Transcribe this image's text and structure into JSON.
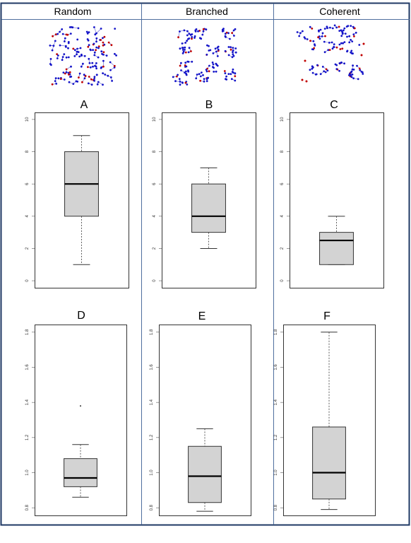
{
  "columns": [
    "Random",
    "Branched",
    "Coherent"
  ],
  "colors": {
    "border": "#1f3864",
    "divider": "#4f6e9e",
    "box_fill": "#d3d3d3",
    "node_blue": "#1414c8",
    "node_red": "#c00000"
  },
  "chart_data": [
    {
      "type": "box",
      "title": "A",
      "ylim": [
        0,
        10
      ],
      "yticks": [
        "0",
        "2",
        "4",
        "6",
        "8",
        "10"
      ],
      "whisker_low": 1,
      "q1": 4,
      "median": 6,
      "q3": 8,
      "whisker_high": 9,
      "outliers": []
    },
    {
      "type": "box",
      "title": "B",
      "ylim": [
        0,
        10
      ],
      "yticks": [
        "0",
        "2",
        "4",
        "6",
        "8",
        "10"
      ],
      "whisker_low": 2,
      "q1": 3,
      "median": 4,
      "q3": 6,
      "whisker_high": 7,
      "outliers": []
    },
    {
      "type": "box",
      "title": "C",
      "ylim": [
        0,
        10
      ],
      "yticks": [
        "0",
        "2",
        "4",
        "6",
        "8",
        "10"
      ],
      "whisker_low": 1,
      "q1": 1,
      "median": 2.5,
      "q3": 3,
      "whisker_high": 4,
      "outliers": []
    },
    {
      "type": "box",
      "title": "D",
      "ylim": [
        0.8,
        1.8
      ],
      "yticks": [
        "0.8",
        "1.0",
        "1.2",
        "1.4",
        "1.6",
        "1.8"
      ],
      "whisker_low": 0.86,
      "q1": 0.92,
      "median": 0.97,
      "q3": 1.08,
      "whisker_high": 1.16,
      "outliers": [
        1.38
      ]
    },
    {
      "type": "box",
      "title": "E",
      "ylim": [
        0.8,
        1.8
      ],
      "yticks": [
        "0.8",
        "1.0",
        "1.2",
        "1.4",
        "1.6",
        "1.8"
      ],
      "whisker_low": 0.78,
      "q1": 0.83,
      "median": 0.98,
      "q3": 1.15,
      "whisker_high": 1.25,
      "outliers": []
    },
    {
      "type": "box",
      "title": "F",
      "ylim": [
        0.8,
        1.8
      ],
      "yticks": [
        "0.8",
        "1.0",
        "1.2",
        "1.4",
        "1.6",
        "1.8"
      ],
      "whisker_low": 0.79,
      "q1": 0.85,
      "median": 1.0,
      "q3": 1.26,
      "whisker_high": 1.8,
      "outliers": []
    }
  ]
}
